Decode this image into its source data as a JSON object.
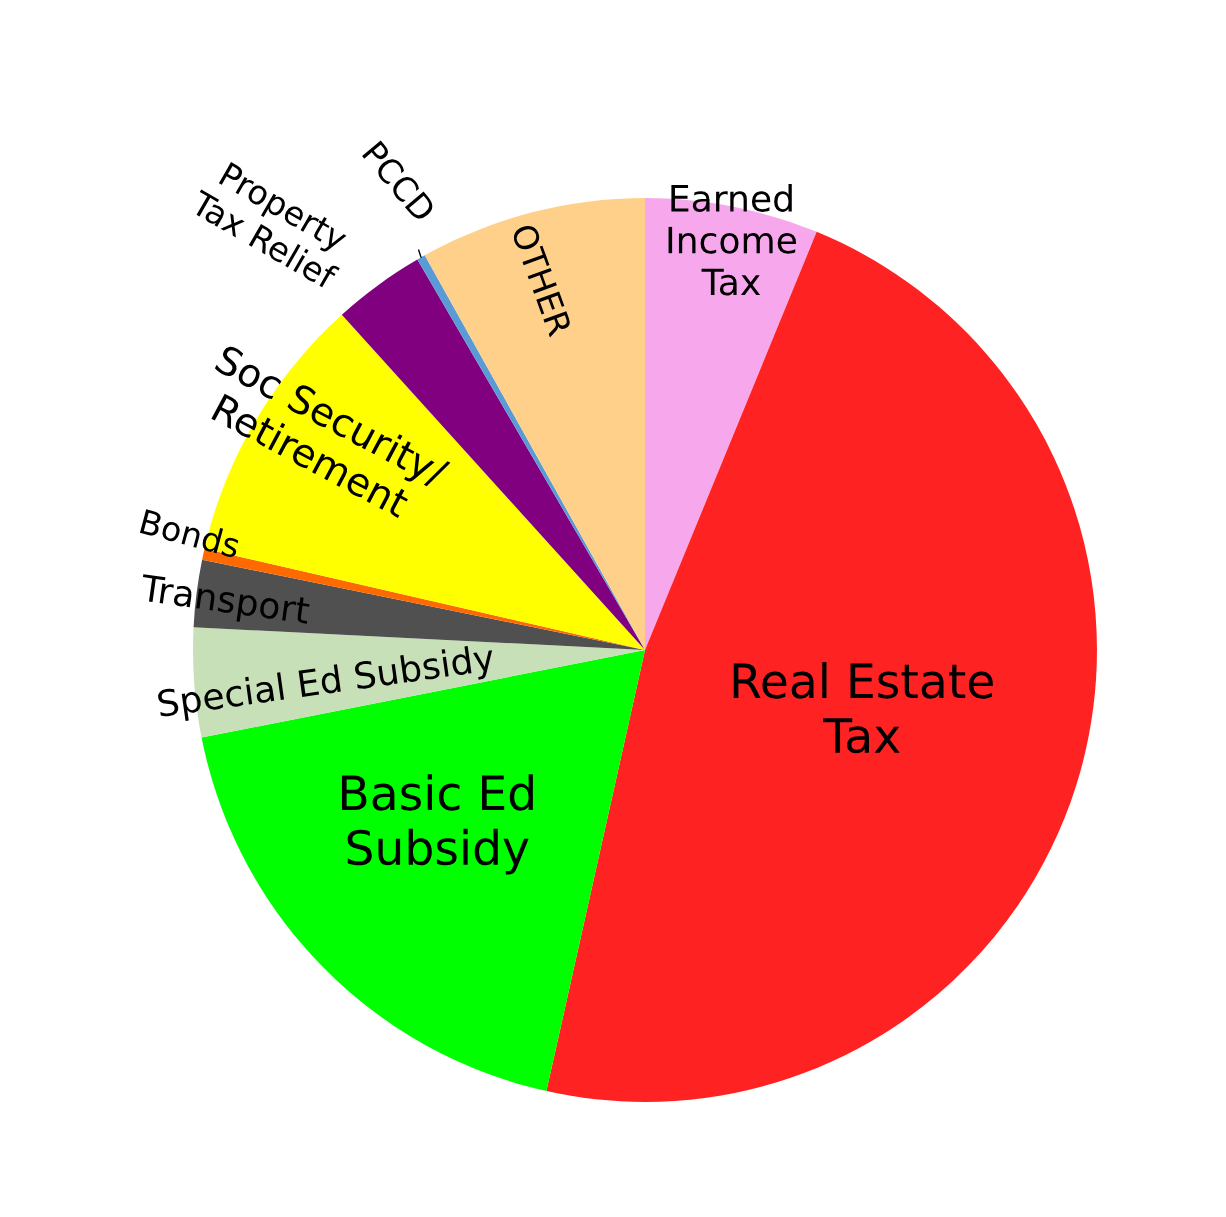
{
  "chart_data": {
    "type": "pie",
    "categories": [
      "Earned\nIncome\nTax",
      "Real Estate\nTax",
      "Basic Ed\nSubsidy",
      "Special Ed Subsidy",
      "Transport",
      "Bonds",
      "Soc Security/\nRetirement",
      "Property\nTax Relief",
      "PCCD",
      "OTHER"
    ],
    "values": [
      6.2,
      47.3,
      18.4,
      3.9,
      2.4,
      0.4,
      9.7,
      3.3,
      0.3,
      8.1
    ],
    "colors": [
      "#f7a8ec",
      "#ff2222",
      "#00ff00",
      "#c8e0b8",
      "#505050",
      "#ff6a00",
      "#ffff00",
      "#800080",
      "#5b9bd5",
      "#ffd08a"
    ],
    "legend": false
  }
}
